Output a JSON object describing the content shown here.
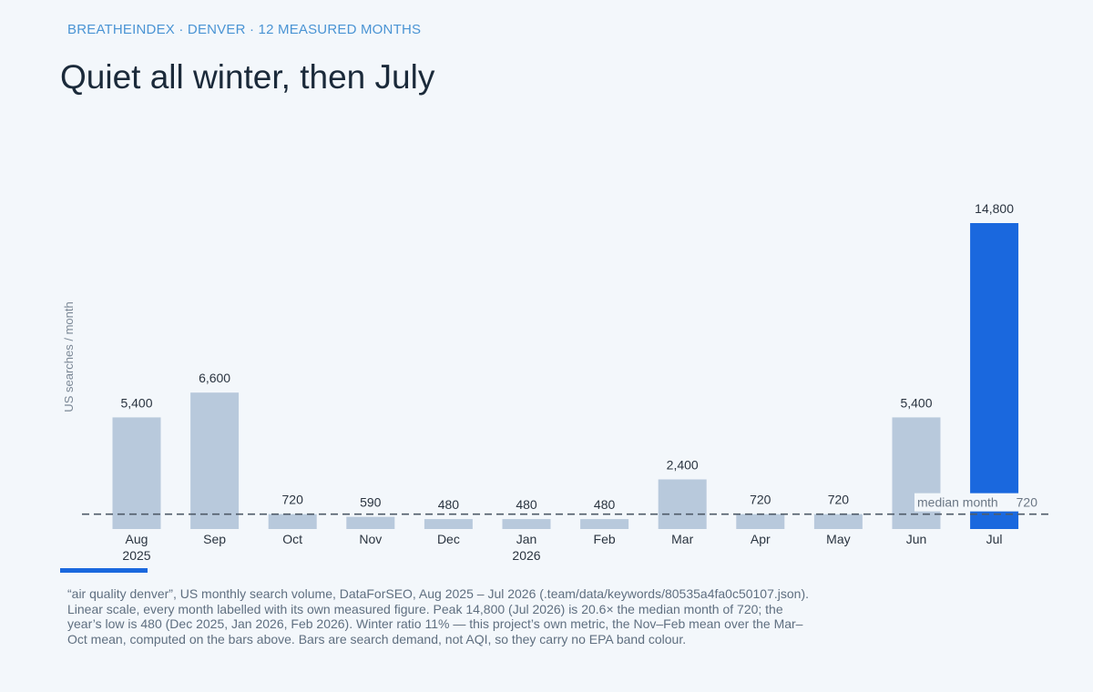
{
  "header": {
    "kicker": "BREATHEINDEX · DENVER · 12 MEASURED MONTHS",
    "title": "Quiet all winter, then July"
  },
  "chart_data": {
    "type": "bar",
    "categories": [
      [
        "Aug",
        "2025"
      ],
      [
        "Sep"
      ],
      [
        "Oct"
      ],
      [
        "Nov"
      ],
      [
        "Dec"
      ],
      [
        "Jan",
        "2026"
      ],
      [
        "Feb"
      ],
      [
        "Mar"
      ],
      [
        "Apr"
      ],
      [
        "May"
      ],
      [
        "Jun"
      ],
      [
        "Jul"
      ]
    ],
    "values": [
      5400,
      6600,
      720,
      590,
      480,
      480,
      480,
      2400,
      720,
      720,
      5400,
      14800
    ],
    "value_labels": [
      "5,400",
      "6,600",
      "720",
      "590",
      "480",
      "480",
      "480",
      "2,400",
      "720",
      "720",
      "5,400",
      "14,800"
    ],
    "highlight_index": 11,
    "ylabel": "US searches / month",
    "ylim": [
      0,
      14800
    ],
    "scale": "linear",
    "grid": false,
    "reference_line": {
      "label": "median month",
      "value": 720,
      "value_label": "720"
    },
    "colors": {
      "bar": "#b8c9dc",
      "highlight": "#1a68de",
      "reference": "#4f5b68",
      "value_label": "#2a3440",
      "tick_label": "#2a3440",
      "axis_label": "#7b8896"
    }
  },
  "footnote": "“air quality denver”, US monthly search volume, DataForSEO, Aug 2025 – Jul 2026 (.team/data/keywords/80535a4fa0c50107.json). Linear scale, every month labelled with its own measured figure. Peak 14,800 (Jul 2026) is 20.6× the median month of 720; the year’s low is 480 (Dec 2025, Jan 2026, Feb 2026). Winter ratio 11% — this project’s own metric, the Nov–Feb mean over the Mar–Oct mean, computed on the bars above. Bars are search demand, not AQI, so they carry no EPA band colour."
}
